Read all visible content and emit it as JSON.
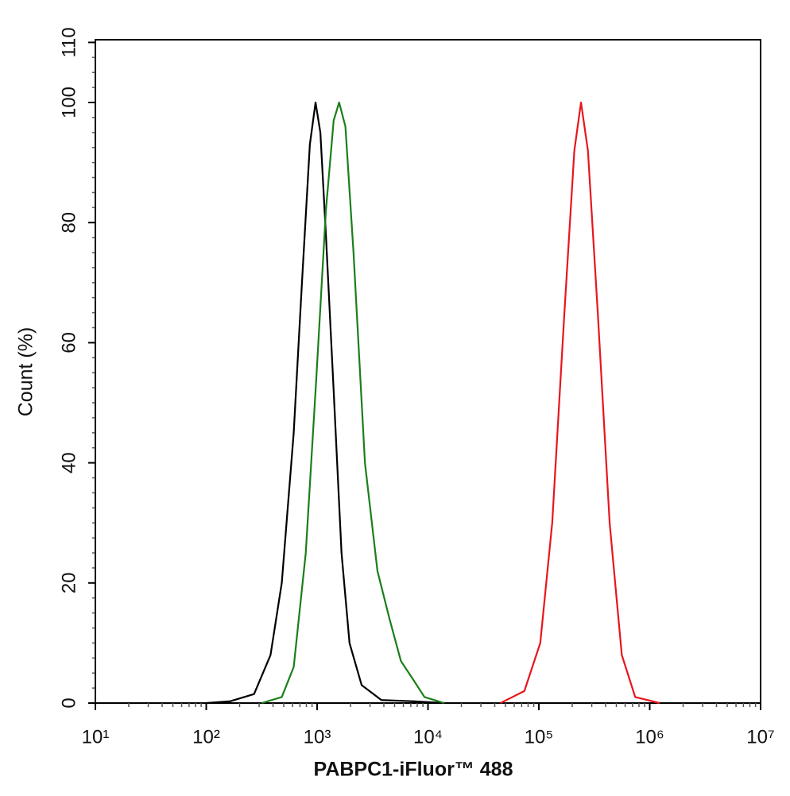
{
  "chart_data": {
    "type": "line",
    "xlabel": "PABPC1-iFluor™ 488",
    "ylabel": "Count  (%)",
    "xscale": "log",
    "xlim": [
      10,
      10000000
    ],
    "ylim": [
      0,
      110
    ],
    "xticks": [
      {
        "value": 10,
        "label": "10¹"
      },
      {
        "value": 100,
        "label": "10²"
      },
      {
        "value": 1000,
        "label": "10³"
      },
      {
        "value": 10000,
        "label": "10⁴"
      },
      {
        "value": 100000,
        "label": "10⁵"
      },
      {
        "value": 1000000,
        "label": "10⁶"
      },
      {
        "value": 10000000,
        "label": "10⁷"
      }
    ],
    "yticks": [
      0,
      20,
      40,
      60,
      80,
      100,
      110
    ],
    "series": [
      {
        "color": "#000000",
        "x": [
          100,
          165,
          270,
          380,
          480,
          615,
          730,
          860,
          968,
          1070,
          1200,
          1410,
          1660,
          1960,
          2520,
          3800,
          7300,
          14000
        ],
        "values": [
          0,
          0.3,
          1.5,
          8,
          20,
          45,
          70,
          93,
          100,
          95,
          78,
          52,
          25,
          10,
          3,
          0.5,
          0.3,
          0
        ]
      },
      {
        "color": "#1a7f1a",
        "x": [
          316,
          480,
          615,
          790,
          990,
          1200,
          1410,
          1580,
          1800,
          2130,
          2700,
          3500,
          4500,
          5700,
          7300,
          9300,
          14000
        ],
        "values": [
          0,
          1,
          6,
          25,
          55,
          82,
          97,
          100,
          96,
          75,
          40,
          22,
          14,
          7,
          4,
          1,
          0
        ]
      },
      {
        "color": "#e8161b",
        "x": [
          45000,
          74000,
          103000,
          132000,
          170000,
          209000,
          240000,
          277000,
          340000,
          435000,
          560000,
          740000,
          1230000
        ],
        "values": [
          0,
          2,
          10,
          30,
          65,
          92,
          100,
          92,
          65,
          30,
          8,
          1,
          0
        ]
      }
    ]
  }
}
